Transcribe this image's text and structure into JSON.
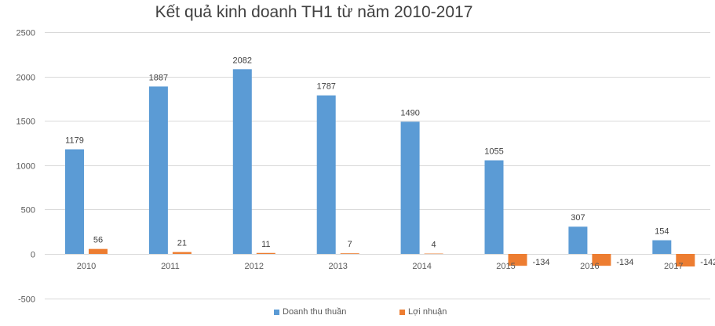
{
  "chart_data": {
    "type": "bar",
    "title": "Kết quả kinh doanh TH1 từ năm 2010-2017",
    "xlabel": "",
    "ylabel": "",
    "ylim": [
      -500,
      2500
    ],
    "yticks": [
      -500,
      0,
      500,
      1000,
      1500,
      2000,
      2500
    ],
    "grid": true,
    "legend_position": "bottom",
    "categories": [
      "2010",
      "2011",
      "2012",
      "2013",
      "2014",
      "2015",
      "2016",
      "2017"
    ],
    "series": [
      {
        "name": "Doanh thu thuần",
        "color": "#5B9BD5",
        "values": [
          1179,
          1887,
          2082,
          1787,
          1490,
          1055,
          307,
          154
        ]
      },
      {
        "name": "Lợi nhuận",
        "color": "#ED7D31",
        "values": [
          56,
          21,
          11,
          7,
          4,
          -134,
          -134,
          -142
        ]
      }
    ]
  }
}
